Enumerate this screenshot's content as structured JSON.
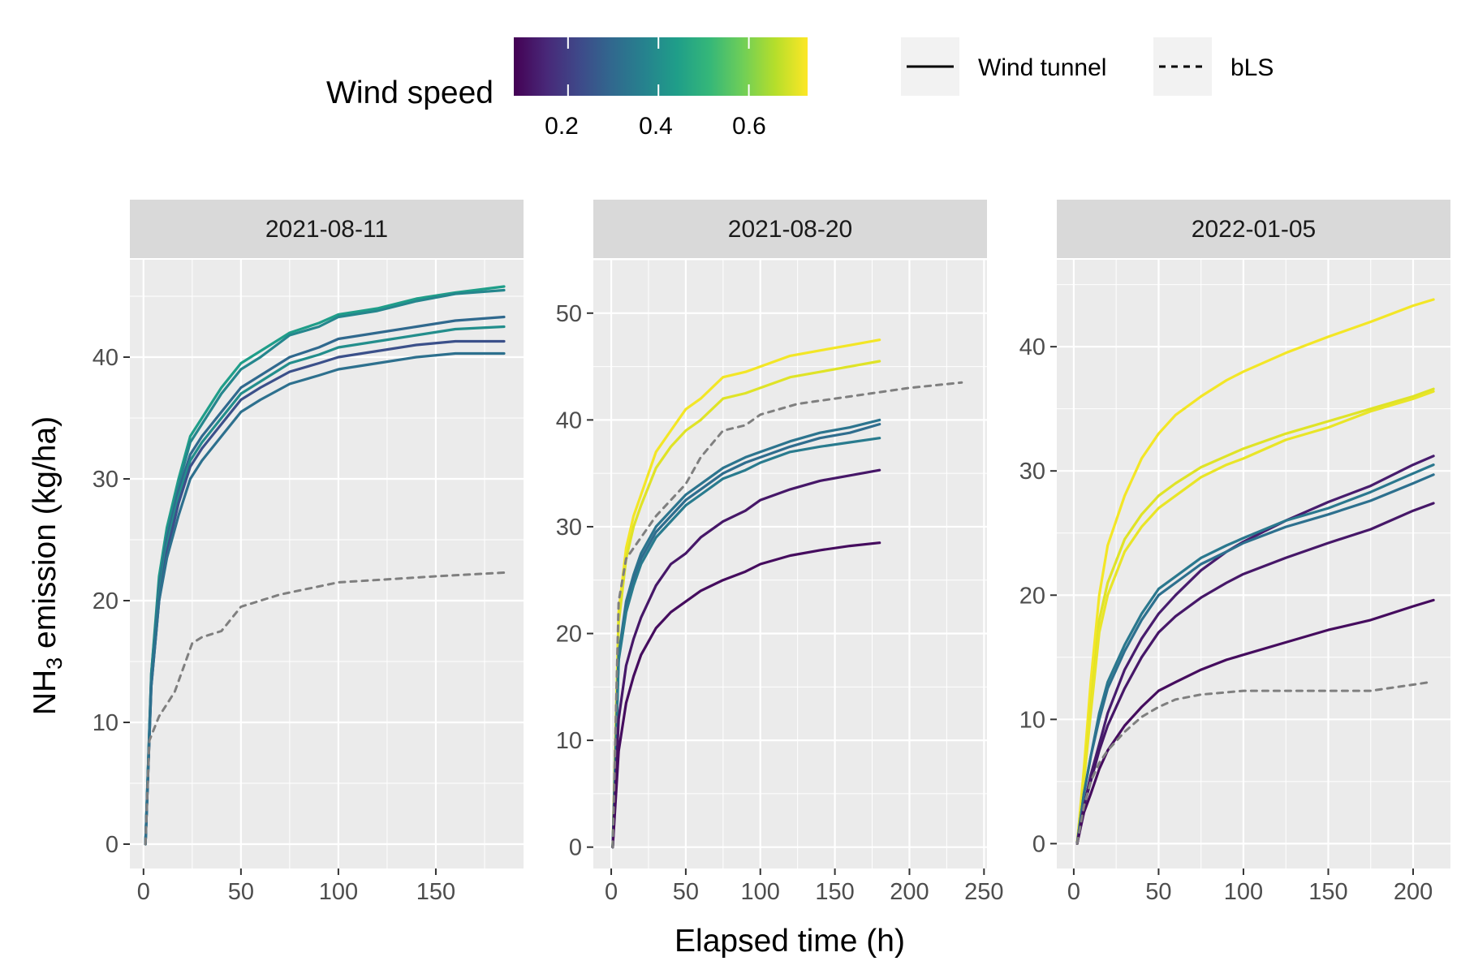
{
  "legend": {
    "colorbar_title": "Wind speed",
    "colorbar_ticks": [
      "0.2",
      "0.4",
      "0.6"
    ],
    "linetype_items": [
      {
        "label": "Wind tunnel",
        "style": "solid"
      },
      {
        "label": "bLS",
        "style": "dashed"
      }
    ]
  },
  "axes": {
    "xlabel": "Elapsed time (h)",
    "ylabel_main": "NH",
    "ylabel_sub": "3",
    "ylabel_rest": " emission (kg/ha)"
  },
  "colors": {
    "viridis": [
      "#440154",
      "#482878",
      "#3e4989",
      "#31688e",
      "#26828e",
      "#1f9e89",
      "#35b779",
      "#6ece58",
      "#b5de2b",
      "#fde725"
    ],
    "bls_line": "#7f7f7f",
    "panel_bg": "#ebebeb",
    "strip_bg": "#d9d9d9"
  },
  "chart_data": [
    {
      "type": "line",
      "title": "2021-08-11",
      "xlabel": "Elapsed time (h)",
      "ylabel": "NH3 emission (kg/ha)",
      "xlim": [
        -7,
        195
      ],
      "ylim": [
        -2,
        48
      ],
      "xticks": [
        0,
        50,
        100,
        150
      ],
      "yticks": [
        0,
        10,
        20,
        30,
        40
      ],
      "grid": true,
      "series": [
        {
          "wind": 0.44,
          "style": "solid",
          "x": [
            1,
            4,
            8,
            12,
            18,
            24,
            30,
            40,
            50,
            60,
            75,
            90,
            100,
            120,
            140,
            160,
            185
          ],
          "y": [
            0,
            14,
            22,
            26,
            30,
            33.5,
            35,
            37.5,
            39.5,
            40.5,
            42,
            42.8,
            43.5,
            44,
            44.8,
            45.3,
            45.8
          ]
        },
        {
          "wind": 0.38,
          "style": "solid",
          "x": [
            1,
            4,
            8,
            12,
            18,
            24,
            30,
            40,
            50,
            60,
            75,
            90,
            100,
            120,
            140,
            160,
            185
          ],
          "y": [
            0,
            14,
            21.5,
            25.5,
            29.5,
            33,
            34.5,
            37,
            39,
            40,
            41.8,
            42.5,
            43.3,
            43.8,
            44.6,
            45.2,
            45.5
          ]
        },
        {
          "wind": 0.3,
          "style": "solid",
          "x": [
            1,
            4,
            8,
            12,
            18,
            24,
            30,
            40,
            50,
            60,
            75,
            90,
            100,
            120,
            140,
            160,
            185
          ],
          "y": [
            0,
            13.5,
            21,
            25,
            29,
            32,
            33.5,
            35.5,
            37.5,
            38.5,
            40,
            40.8,
            41.5,
            42,
            42.5,
            43,
            43.3
          ]
        },
        {
          "wind": 0.4,
          "style": "solid",
          "x": [
            1,
            4,
            8,
            12,
            18,
            24,
            30,
            40,
            50,
            60,
            75,
            90,
            100,
            120,
            140,
            160,
            185
          ],
          "y": [
            0,
            13.5,
            20.5,
            24.5,
            28.5,
            31.5,
            33,
            35,
            37,
            38,
            39.5,
            40.2,
            40.8,
            41.3,
            41.8,
            42.3,
            42.5
          ]
        },
        {
          "wind": 0.24,
          "style": "solid",
          "x": [
            1,
            4,
            8,
            12,
            18,
            24,
            30,
            40,
            50,
            60,
            75,
            90,
            100,
            120,
            140,
            160,
            185
          ],
          "y": [
            0,
            13,
            20,
            24,
            28,
            31,
            32.5,
            34.5,
            36.5,
            37.5,
            38.8,
            39.5,
            40,
            40.5,
            41,
            41.3,
            41.3
          ]
        },
        {
          "wind": 0.32,
          "style": "solid",
          "x": [
            1,
            4,
            8,
            12,
            18,
            24,
            30,
            40,
            50,
            60,
            75,
            90,
            100,
            120,
            140,
            160,
            185
          ],
          "y": [
            0,
            13,
            20,
            23.5,
            27,
            30,
            31.5,
            33.5,
            35.5,
            36.5,
            37.8,
            38.5,
            39,
            39.5,
            40,
            40.3,
            40.3
          ]
        },
        {
          "wind": null,
          "style": "dashed",
          "x": [
            1,
            3,
            8,
            16,
            25,
            30,
            40,
            50,
            70,
            100,
            150,
            185
          ],
          "y": [
            0,
            8.5,
            10.5,
            12.5,
            16.5,
            17,
            17.5,
            19.5,
            20.5,
            21.5,
            22,
            22.3
          ]
        }
      ]
    },
    {
      "type": "line",
      "title": "2021-08-20",
      "xlabel": "Elapsed time (h)",
      "ylabel": "NH3 emission (kg/ha)",
      "xlim": [
        -12,
        252
      ],
      "ylim": [
        -2,
        55
      ],
      "xticks": [
        0,
        50,
        100,
        150,
        200,
        250
      ],
      "yticks": [
        0,
        10,
        20,
        30,
        40,
        50
      ],
      "grid": true,
      "series": [
        {
          "wind": 0.72,
          "style": "solid",
          "x": [
            1,
            5,
            10,
            15,
            20,
            30,
            40,
            50,
            60,
            75,
            90,
            100,
            120,
            140,
            160,
            180
          ],
          "y": [
            0,
            22,
            28,
            31,
            33,
            37,
            39,
            41,
            42,
            44,
            44.5,
            45,
            46,
            46.5,
            47,
            47.5
          ]
        },
        {
          "wind": 0.7,
          "style": "solid",
          "x": [
            1,
            5,
            10,
            15,
            20,
            30,
            40,
            50,
            60,
            75,
            90,
            100,
            120,
            140,
            160,
            180
          ],
          "y": [
            0,
            21,
            27,
            30,
            32,
            35.5,
            37.5,
            39,
            40,
            42,
            42.5,
            43,
            44,
            44.5,
            45,
            45.5
          ]
        },
        {
          "wind": 0.33,
          "style": "solid",
          "x": [
            1,
            5,
            10,
            15,
            20,
            30,
            40,
            50,
            60,
            75,
            90,
            100,
            120,
            140,
            160,
            180
          ],
          "y": [
            0,
            18,
            23,
            25.5,
            27.5,
            30,
            31.5,
            33,
            34,
            35.5,
            36.5,
            37,
            38,
            38.8,
            39.3,
            40
          ]
        },
        {
          "wind": 0.31,
          "style": "solid",
          "x": [
            1,
            5,
            10,
            15,
            20,
            30,
            40,
            50,
            60,
            75,
            90,
            100,
            120,
            140,
            160,
            180
          ],
          "y": [
            0,
            18,
            22.5,
            25,
            27,
            29.5,
            31,
            32.5,
            33.5,
            35,
            36,
            36.5,
            37.5,
            38.3,
            38.8,
            39.6
          ]
        },
        {
          "wind": 0.35,
          "style": "solid",
          "x": [
            1,
            5,
            10,
            15,
            20,
            30,
            40,
            50,
            60,
            75,
            90,
            100,
            120,
            140,
            160,
            180
          ],
          "y": [
            0,
            17.5,
            22,
            24.5,
            26.5,
            29,
            30.5,
            32,
            33,
            34.5,
            35.3,
            36,
            37,
            37.5,
            37.9,
            38.3
          ]
        },
        {
          "wind": 0.12,
          "style": "solid",
          "x": [
            1,
            5,
            10,
            15,
            20,
            30,
            40,
            50,
            60,
            75,
            90,
            100,
            120,
            140,
            160,
            180
          ],
          "y": [
            0,
            12,
            17,
            19.5,
            21.5,
            24.5,
            26.5,
            27.5,
            29,
            30.5,
            31.5,
            32.5,
            33.5,
            34.3,
            34.8,
            35.3
          ]
        },
        {
          "wind": 0.1,
          "style": "solid",
          "x": [
            1,
            5,
            10,
            15,
            20,
            30,
            40,
            50,
            60,
            75,
            90,
            100,
            120,
            140,
            160,
            180
          ],
          "y": [
            0,
            9,
            13.5,
            16,
            18,
            20.5,
            22,
            23,
            24,
            25,
            25.8,
            26.5,
            27.3,
            27.8,
            28.2,
            28.5
          ]
        },
        {
          "wind": null,
          "style": "dashed",
          "x": [
            1,
            5,
            10,
            20,
            30,
            40,
            50,
            60,
            75,
            90,
            100,
            125,
            150,
            175,
            200,
            235
          ],
          "y": [
            0,
            23,
            27,
            29,
            31,
            32.5,
            34,
            36.5,
            39,
            39.5,
            40.5,
            41.5,
            42,
            42.5,
            43,
            43.5
          ]
        }
      ]
    },
    {
      "type": "line",
      "title": "2022-01-05",
      "xlabel": "Elapsed time (h)",
      "ylabel": "NH3 emission (kg/ha)",
      "xlim": [
        -10,
        222
      ],
      "ylim": [
        -2,
        47
      ],
      "xticks": [
        0,
        50,
        100,
        150,
        200
      ],
      "yticks": [
        0,
        10,
        20,
        30,
        40
      ],
      "grid": true,
      "series": [
        {
          "wind": 0.72,
          "style": "solid",
          "x": [
            2,
            6,
            10,
            15,
            20,
            30,
            40,
            50,
            60,
            75,
            90,
            100,
            125,
            150,
            175,
            200,
            212
          ],
          "y": [
            0,
            6,
            13,
            20,
            24,
            28,
            31,
            33,
            34.5,
            36,
            37.3,
            38,
            39.5,
            40.8,
            42,
            43.3,
            43.8
          ]
        },
        {
          "wind": 0.7,
          "style": "solid",
          "x": [
            2,
            6,
            10,
            15,
            20,
            30,
            40,
            50,
            60,
            75,
            90,
            100,
            125,
            150,
            175,
            200,
            212
          ],
          "y": [
            0,
            5,
            11,
            18,
            21,
            24.5,
            26.5,
            28,
            29,
            30.3,
            31.2,
            31.8,
            33,
            34,
            35,
            36,
            36.6
          ]
        },
        {
          "wind": 0.71,
          "style": "solid",
          "x": [
            2,
            6,
            10,
            15,
            20,
            30,
            40,
            50,
            60,
            75,
            90,
            100,
            125,
            150,
            175,
            200,
            212
          ],
          "y": [
            0,
            5,
            10.5,
            17,
            20,
            23.5,
            25.5,
            27,
            28,
            29.5,
            30.5,
            31,
            32.5,
            33.5,
            34.8,
            35.8,
            36.4
          ]
        },
        {
          "wind": 0.13,
          "style": "solid",
          "x": [
            2,
            6,
            10,
            15,
            20,
            30,
            40,
            50,
            60,
            75,
            90,
            100,
            125,
            150,
            175,
            200,
            212
          ],
          "y": [
            0,
            3,
            5.5,
            8,
            10.5,
            14,
            16.5,
            18.5,
            20,
            22,
            23.5,
            24.3,
            26,
            27.5,
            28.8,
            30.5,
            31.2
          ]
        },
        {
          "wind": 0.34,
          "style": "solid",
          "x": [
            2,
            6,
            10,
            15,
            20,
            30,
            40,
            50,
            60,
            75,
            90,
            100,
            125,
            150,
            175,
            200,
            212
          ],
          "y": [
            0,
            4,
            7,
            10.5,
            13,
            16,
            18.5,
            20.5,
            21.5,
            23,
            24,
            24.6,
            26,
            27,
            28.3,
            29.8,
            30.5
          ]
        },
        {
          "wind": 0.32,
          "style": "solid",
          "x": [
            2,
            6,
            10,
            15,
            20,
            30,
            40,
            50,
            60,
            75,
            90,
            100,
            125,
            150,
            175,
            200,
            212
          ],
          "y": [
            0,
            4,
            7,
            10,
            12.5,
            15.5,
            18,
            20,
            21,
            22.5,
            23.5,
            24.2,
            25.5,
            26.5,
            27.6,
            29,
            29.7
          ]
        },
        {
          "wind": 0.12,
          "style": "solid",
          "x": [
            2,
            6,
            10,
            15,
            20,
            30,
            40,
            50,
            60,
            75,
            90,
            100,
            125,
            150,
            175,
            200,
            212
          ],
          "y": [
            0,
            3,
            5,
            7.5,
            9.5,
            12.5,
            15,
            17,
            18.3,
            19.8,
            21,
            21.7,
            23,
            24.2,
            25.3,
            26.8,
            27.4
          ]
        },
        {
          "wind": 0.1,
          "style": "solid",
          "x": [
            2,
            6,
            10,
            15,
            20,
            30,
            40,
            50,
            60,
            75,
            90,
            100,
            125,
            150,
            175,
            200,
            212
          ],
          "y": [
            0,
            2.5,
            4,
            6,
            7.5,
            9.5,
            11,
            12.3,
            13,
            14,
            14.8,
            15.2,
            16.2,
            17.2,
            18,
            19.1,
            19.6
          ]
        },
        {
          "wind": null,
          "style": "dashed",
          "x": [
            2,
            6,
            10,
            15,
            20,
            30,
            40,
            50,
            60,
            75,
            100,
            125,
            150,
            175,
            200,
            210
          ],
          "y": [
            0,
            3,
            5,
            6.5,
            7.5,
            9,
            10.2,
            11,
            11.6,
            12,
            12.3,
            12.3,
            12.3,
            12.3,
            12.8,
            13
          ]
        }
      ]
    }
  ]
}
